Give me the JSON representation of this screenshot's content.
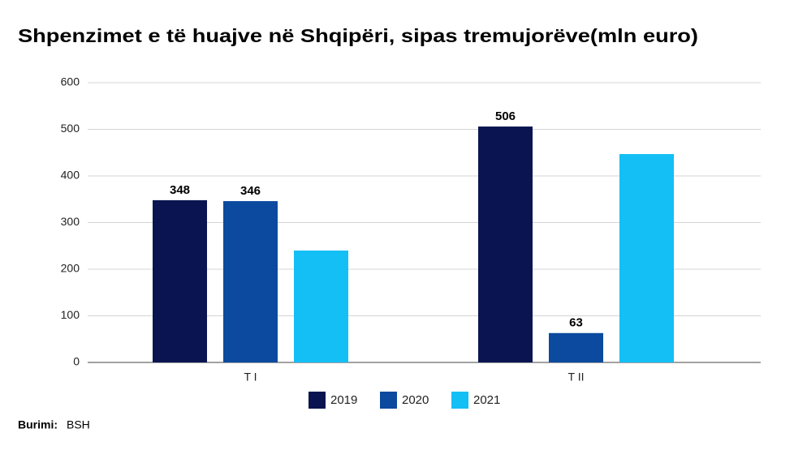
{
  "chart_data": {
    "type": "bar",
    "title": "Shpenzimet e të huajve në Shqipëri, sipas tremujorëve(mln euro)",
    "categories": [
      "T I",
      "T II"
    ],
    "series": [
      {
        "name": "2019",
        "color": "#0a1450",
        "values": [
          348,
          506
        ],
        "data_labels": true
      },
      {
        "name": "2020",
        "color": "#0b4a9e",
        "values": [
          346,
          63
        ],
        "data_labels": true
      },
      {
        "name": "2021",
        "color": "#14bff5",
        "values": [
          240,
          447
        ],
        "data_labels": false
      }
    ],
    "ylim": [
      0,
      600
    ],
    "yticks": [
      0,
      100,
      200,
      300,
      400,
      500,
      600
    ],
    "grid": true,
    "legend": "bottom",
    "source_label": "Burimi:",
    "source": "BSH"
  }
}
